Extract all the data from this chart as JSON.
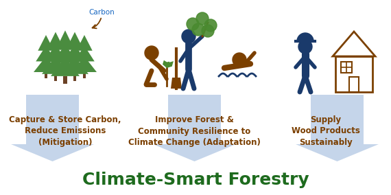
{
  "title": "Climate-Smart Forestry",
  "title_color": "#1e6b1e",
  "title_fontsize": 18,
  "title_fontstyle": "bold",
  "background_color": "#ffffff",
  "labels": [
    "Capture & Store Carbon,\nReduce Emissions\n(Mitigation)",
    "Improve Forest &\nCommunity Resilience to\nClimate Change (Adaptation)",
    "Supply\nWood Products\nSustainably"
  ],
  "label_color": "#7b3f00",
  "label_fontsize": 8.5,
  "carbon_label": "Carbon",
  "carbon_color": "#1565c0",
  "carbon_fontsize": 7.5,
  "tree_color": "#4a8c3f",
  "brown": "#7b4000",
  "blue_dark": "#1a3a6b",
  "green_leaf": "#4a8a30",
  "arrow_color": "#c5d5ea",
  "figsize": [
    5.7,
    2.84
  ],
  "dpi": 100
}
